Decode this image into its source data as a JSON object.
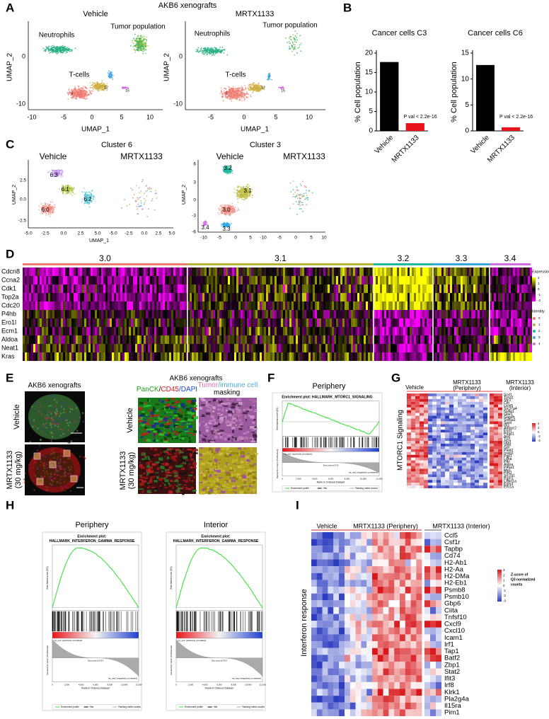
{
  "panel_labels": [
    "A",
    "B",
    "C",
    "D",
    "E",
    "F",
    "G",
    "H",
    "I"
  ],
  "panel_A": {
    "title": "AKB6 xenografts",
    "xlabel": "UMAP_1",
    "ylabel": "UMAP_2",
    "plots": [
      {
        "title": "Vehicle",
        "cell_labels": [
          "Neutrophils",
          "Tumor population",
          "T-cells"
        ],
        "cluster_labels": [
          "0",
          "12",
          "15"
        ],
        "xticks": [
          "-10",
          "-5",
          "0",
          "5",
          "10"
        ],
        "yticks": [
          "0",
          "-10"
        ]
      },
      {
        "title": "MRTX1133",
        "cell_labels": [
          "Neutrophils",
          "Tumor population",
          "T-cells"
        ],
        "cluster_labels": [
          "0",
          "12",
          "15"
        ],
        "xticks": [
          "-5",
          "0",
          "5",
          "10"
        ],
        "yticks": [
          "0",
          "-10"
        ]
      }
    ]
  },
  "chart_data": [
    {
      "type": "bar",
      "title": "Cancer cells C3",
      "categories": [
        "Vehicle",
        "MRTX1133"
      ],
      "values": [
        17.7,
        2.0
      ],
      "colors": [
        "#000000",
        "#e8141b"
      ],
      "ylabel": "% Cell population",
      "ylim": [
        0,
        20
      ],
      "yticks": [
        0,
        5,
        10,
        15,
        20
      ],
      "annotation": "P val < 2.2e-16"
    },
    {
      "type": "bar",
      "title": "Cancer cells C6",
      "categories": [
        "Vehicle",
        "MRTX1133"
      ],
      "values": [
        12.7,
        0.7
      ],
      "colors": [
        "#000000",
        "#e8141b"
      ],
      "ylabel": "% Cell population",
      "ylim": [
        0,
        15
      ],
      "yticks": [
        0,
        5,
        10,
        15
      ],
      "annotation": "P val < 2.2e-16"
    }
  ],
  "panel_C": {
    "xlabel": "UMAP_1",
    "ylabel": "UMAP_2",
    "plots": [
      {
        "title": "Cluster 6",
        "groups": [
          "Vehicle",
          "MRTX1133"
        ],
        "cluster_labels": [
          "6.3",
          "6.1",
          "6.0",
          "6.2"
        ],
        "xticks": [
          "-5.0",
          "-2.5",
          "0.0",
          "2.5",
          "5.0",
          "-5.0",
          "-2.5",
          "0.0",
          "2.5",
          "5.0"
        ],
        "yticks": [
          "2.5",
          "0.0",
          "-2.5"
        ]
      },
      {
        "title": "Cluster 3",
        "groups": [
          "Vehicle",
          "MRTX1133"
        ],
        "cluster_labels": [
          "3.2",
          "3.1",
          "3.0",
          "3.3",
          "3.4"
        ],
        "xticks": [
          "-10",
          "-5",
          "0",
          "5",
          "-10",
          "-5",
          "0",
          "5",
          "10"
        ],
        "yticks": [
          "6",
          "3",
          "0",
          "-3",
          "-6"
        ]
      }
    ]
  },
  "panel_D": {
    "clusters": [
      "3.0",
      "3.1",
      "3.2",
      "3.3",
      "3.4"
    ],
    "genes": [
      "Cdcn8",
      "Ccna2",
      "Cdk1",
      "Top2a",
      "Cdc20",
      "P4hb",
      "Ero1l",
      "Ecm1",
      "Aldoa",
      "Neat1",
      "Kras"
    ],
    "legend_expression": {
      "title": "Expression",
      "ticks": [
        "2",
        "1",
        "0",
        "-1",
        "-2"
      ]
    },
    "legend_identity": {
      "title": "Identity",
      "items": [
        "0",
        "1",
        "2",
        "3",
        "4"
      ]
    }
  },
  "panel_E": {
    "title_left": "AKB6 xenografts",
    "title_right": "AKB6 xenografts",
    "rows": [
      [
        "Vehicle"
      ],
      [
        "MRTX1133",
        "(30 mg/kg)"
      ]
    ],
    "stain_header": [
      "PanCK",
      "/",
      "CD45",
      "/DAPI"
    ],
    "mask_header": [
      "Tumor",
      "/immune cell",
      "masking"
    ],
    "scale_bars": [
      "1mm",
      "500 µm"
    ]
  },
  "gsea_common": {
    "es_label": "Enrichment score (ES)",
    "rank_label": "Ranked list metric (PreRanked)",
    "x_label": "Rank in Ordered Dataset",
    "pos_label": "'na_pos' (positively correlated)",
    "neg_label": "'na_neg' (negatively correlated)",
    "zero_cross": "Zero cross at 5714",
    "legend": [
      "Enrichment profile",
      "Hits",
      "Ranking metric scores"
    ],
    "xticks": [
      "0",
      "2,000",
      "4,000",
      "6,000",
      "8,000",
      "10,000",
      "12,000"
    ]
  },
  "panel_F": {
    "title": "Periphery",
    "plot_title": [
      "Enrichment plot: HALLMARK_MTORC1_SIGNALING"
    ]
  },
  "panel_G": {
    "groups": [
      [
        "Vehicle"
      ],
      [
        "MRTX1133",
        "(Periphery)"
      ],
      [
        "MRTX1133",
        "(Interior)"
      ]
    ],
    "ylabel": "MTORC1 Signaling",
    "genes": [
      "Scd1",
      "Tcea1",
      "Stc1",
      "Cth",
      "Uchl5",
      "Slc37a4",
      "Nufip1",
      "Gbe1",
      "Gapdh",
      "Srd5a1",
      "Sord",
      "Idi1",
      "Adipor2",
      "Eno1",
      "Pdap1",
      "Ak4",
      "Tpi1",
      "Gpi1",
      "Vldlr",
      "Gsr",
      "Plod2",
      "Insig1",
      "Pgk1",
      "Ldha",
      "Pfkl",
      "Aldoa",
      "P4ha1",
      "Me1",
      "Pdk1",
      "Slc2a1",
      "Pgm1",
      "Cdkn1a",
      "Egln3",
      "Ero1a"
    ],
    "legend_ticks": [
      "4",
      "2",
      "0",
      "-2",
      "-4"
    ]
  },
  "panel_H": {
    "plots": [
      {
        "title": "Periphery",
        "plot_title": [
          "Enrichment plot:",
          "HALLMARK_INTERFERON_GAMMA_RESPONSE"
        ]
      },
      {
        "title": "Interior",
        "plot_title": [
          "Enrichment plot:",
          "HALLMARK_INTERFERON_GAMMA_RESPONSE"
        ]
      }
    ]
  },
  "panel_I": {
    "groups": [
      "Vehicle",
      "MRTX1133 (Periphery)",
      "MRTX1133 (Interior)"
    ],
    "ylabel": "Interferon response",
    "genes": [
      "Ccl5",
      "Csf1r",
      "Tapbp",
      "Cd74",
      "H2-Ab1",
      "H2-Aa",
      "H2-DMa",
      "H2-Eb1",
      "Psmb8",
      "Psmb10",
      "Gbp6",
      "Ciita",
      "Tnfsf10",
      "Cxcl9",
      "Cxcl10",
      "Icam1",
      "Irf1",
      "Tap1",
      "Batf2",
      "Zbp1",
      "Stat2",
      "Ifit3",
      "Irf8",
      "Klrk1",
      "Pla2g4a",
      "Il15ra",
      "Pim1"
    ],
    "legend_title": [
      "Z-score of",
      "Q3 normalized",
      "counts"
    ],
    "legend_ticks": [
      "3",
      "2",
      "1",
      "0",
      "-1",
      "-2",
      "-3"
    ]
  }
}
